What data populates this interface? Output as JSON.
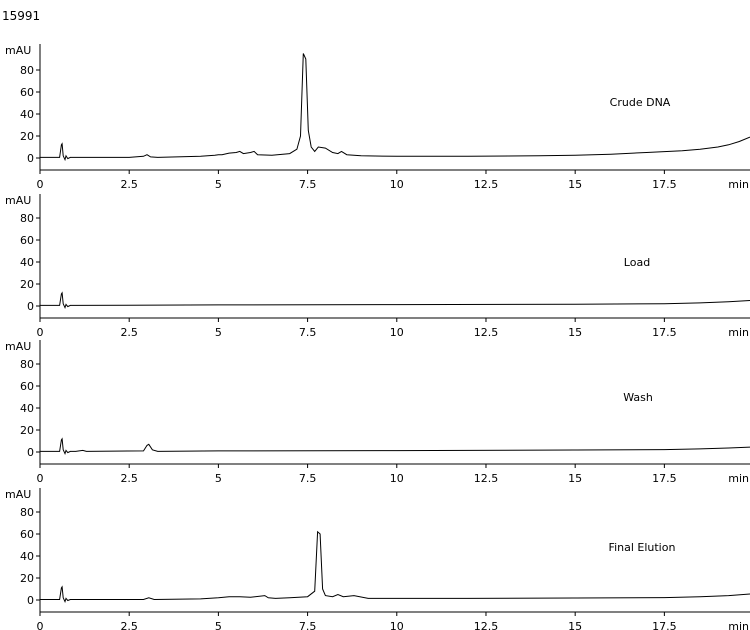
{
  "figure_id": "15991",
  "chart_data": [
    {
      "type": "line",
      "title": "Crude DNA",
      "ylabel": "mAU",
      "xlabel": "min",
      "ylim": [
        -5,
        100
      ],
      "xlim": [
        0,
        19.9
      ],
      "x_ticks": [
        0,
        2.5,
        5,
        7.5,
        10,
        12.5,
        15,
        17.5
      ],
      "x_tick_labels": [
        "0",
        "2.5",
        "5",
        "7.5",
        "10",
        "12.5",
        "15",
        "17.5"
      ],
      "y_ticks": [
        0,
        20,
        40,
        60,
        80
      ],
      "y_tick_labels": [
        "0",
        "20",
        "40",
        "60",
        "80"
      ],
      "series": [
        {
          "x": [
            0,
            0.55,
            0.6,
            0.62,
            0.65,
            0.7,
            0.73,
            0.78,
            0.85,
            1.0,
            2.5,
            2.9,
            3.0,
            3.1,
            3.3,
            4.5,
            4.9,
            5.0,
            5.1,
            5.3,
            5.5,
            5.6,
            5.7,
            5.9,
            6.0,
            6.1,
            6.5,
            7.0,
            7.2,
            7.3,
            7.38,
            7.45,
            7.52,
            7.6,
            7.7,
            7.8,
            8.0,
            8.2,
            8.35,
            8.45,
            8.6,
            9.0,
            10.0,
            12.0,
            14.0,
            15.0,
            16.0,
            17.0,
            18.0,
            18.5,
            19.0,
            19.3,
            19.6,
            19.9
          ],
          "y": [
            0.5,
            0.5,
            12,
            13,
            2,
            -1.5,
            2,
            -0.5,
            0.5,
            0.5,
            0.5,
            1.5,
            3,
            1,
            0.5,
            1.5,
            2.5,
            3,
            3,
            4.5,
            5,
            6,
            4,
            5,
            6,
            3,
            2.5,
            4,
            8,
            20,
            95,
            90,
            25,
            10,
            6,
            10,
            9,
            5,
            4,
            6,
            3,
            2,
            1.5,
            1.5,
            2,
            2.5,
            3.5,
            5,
            6.5,
            8,
            10,
            12,
            15,
            19
          ]
        }
      ]
    },
    {
      "type": "line",
      "title": "Load",
      "ylabel": "mAU",
      "xlabel": "min",
      "ylim": [
        -5,
        100
      ],
      "xlim": [
        0,
        19.9
      ],
      "x_ticks": [
        0,
        2.5,
        5,
        7.5,
        10,
        12.5,
        15,
        17.5
      ],
      "x_tick_labels": [
        "0",
        "2.5",
        "5",
        "7.5",
        "10",
        "12.5",
        "15",
        "17.5"
      ],
      "y_ticks": [
        0,
        20,
        40,
        60,
        80
      ],
      "y_tick_labels": [
        "0",
        "20",
        "40",
        "60",
        "80"
      ],
      "series": [
        {
          "x": [
            0,
            0.55,
            0.6,
            0.62,
            0.65,
            0.7,
            0.73,
            0.78,
            0.85,
            1.0,
            5.0,
            10.0,
            15.0,
            17.5,
            18.5,
            19.3,
            19.9
          ],
          "y": [
            0.5,
            0.5,
            11,
            12,
            2,
            -1.5,
            1.5,
            -0.5,
            0.5,
            0.5,
            1,
            1.3,
            1.6,
            2,
            2.8,
            3.8,
            5
          ]
        }
      ]
    },
    {
      "type": "line",
      "title": "Wash",
      "ylabel": "mAU",
      "xlabel": "min",
      "ylim": [
        -5,
        100
      ],
      "xlim": [
        0,
        19.9
      ],
      "x_ticks": [
        0,
        2.5,
        5,
        7.5,
        10,
        12.5,
        15,
        17.5
      ],
      "x_tick_labels": [
        "0",
        "2.5",
        "5",
        "7.5",
        "10",
        "12.5",
        "15",
        "17.5"
      ],
      "y_ticks": [
        0,
        20,
        40,
        60,
        80
      ],
      "y_tick_labels": [
        "0",
        "20",
        "40",
        "60",
        "80"
      ],
      "series": [
        {
          "x": [
            0,
            0.55,
            0.6,
            0.62,
            0.65,
            0.7,
            0.73,
            0.78,
            0.85,
            1.0,
            1.2,
            1.3,
            2.9,
            3.0,
            3.05,
            3.15,
            3.3,
            5.0,
            10.0,
            15.0,
            17.5,
            18.5,
            19.3,
            19.9
          ],
          "y": [
            0.5,
            0.5,
            11,
            12,
            2,
            -1.5,
            1.5,
            -0.5,
            0.5,
            0.5,
            1.5,
            0.5,
            1,
            6,
            7,
            2,
            0.5,
            1,
            1.3,
            1.8,
            2.2,
            2.8,
            3.6,
            4.5
          ]
        }
      ]
    },
    {
      "type": "line",
      "title": "Final Elution",
      "ylabel": "mAU",
      "xlabel": "min",
      "ylim": [
        -5,
        100
      ],
      "xlim": [
        0,
        19.9
      ],
      "x_ticks": [
        0,
        2.5,
        5,
        7.5,
        10,
        12.5,
        15,
        17.5
      ],
      "x_tick_labels": [
        "0",
        "2.5",
        "5",
        "7.5",
        "10",
        "12.5",
        "15",
        "17.5"
      ],
      "y_ticks": [
        0,
        20,
        40,
        60,
        80
      ],
      "y_tick_labels": [
        "0",
        "20",
        "40",
        "60",
        "80"
      ],
      "series": [
        {
          "x": [
            0,
            0.55,
            0.6,
            0.62,
            0.65,
            0.7,
            0.73,
            0.78,
            0.85,
            1.0,
            2.9,
            3.05,
            3.2,
            4.5,
            5.0,
            5.3,
            5.6,
            5.9,
            6.3,
            6.4,
            6.6,
            7.0,
            7.5,
            7.7,
            7.78,
            7.85,
            7.92,
            8.0,
            8.2,
            8.35,
            8.5,
            8.8,
            9.2,
            10.0,
            12.0,
            15.0,
            17.5,
            18.5,
            19.3,
            19.9
          ],
          "y": [
            0.5,
            0.5,
            11,
            12,
            2,
            -1.5,
            1.5,
            -0.5,
            0.5,
            0.5,
            0.5,
            2,
            0.5,
            1,
            2,
            3,
            3,
            2.5,
            4,
            2,
            1.5,
            2,
            3,
            8,
            62,
            60,
            10,
            4,
            3,
            5,
            3,
            4,
            1.5,
            1.5,
            1.5,
            1.8,
            2.2,
            3,
            4,
            5.5
          ]
        }
      ]
    }
  ]
}
